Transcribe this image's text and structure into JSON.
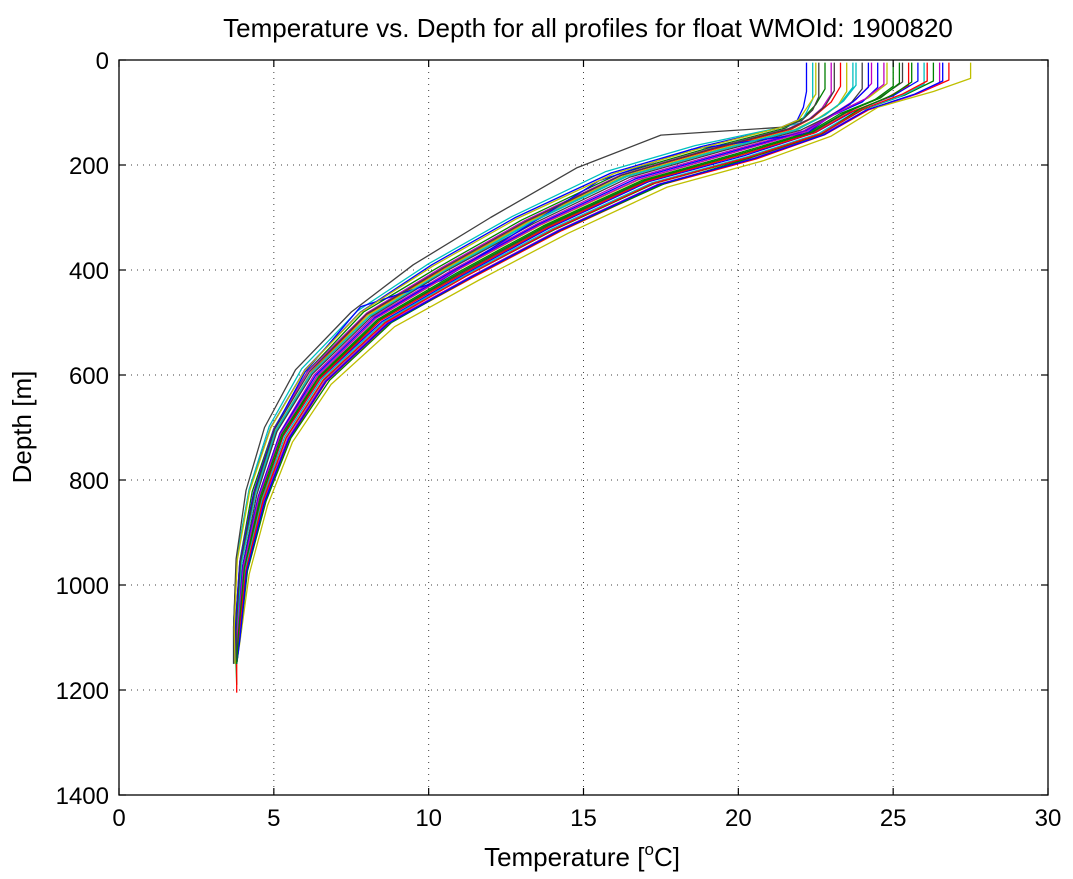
{
  "chart_data": {
    "type": "line",
    "title": "Temperature vs. Depth for all profiles for float WMOId: 1900820",
    "xlabel_main": "Temperature [",
    "xlabel_sup": "o",
    "xlabel_end": "C]",
    "ylabel": "Depth [m]",
    "xlim": [
      0,
      30
    ],
    "ylim": [
      0,
      1400
    ],
    "y_reversed": true,
    "grid": true,
    "x_ticks": [
      0,
      5,
      10,
      15,
      20,
      25,
      30
    ],
    "y_ticks": [
      0,
      200,
      400,
      600,
      800,
      1000,
      1200,
      1400
    ],
    "x_tick_labels": [
      "0",
      "5",
      "10",
      "15",
      "20",
      "25",
      "30"
    ],
    "y_tick_labels": [
      "0",
      "200",
      "400",
      "600",
      "800",
      "1000",
      "1200",
      "1400"
    ],
    "colors": [
      "#0000ff",
      "#008000",
      "#ff0000",
      "#00bfbf",
      "#bf00bf",
      "#bfbf00",
      "#404040"
    ],
    "series": [
      {
        "x": [
          22.2,
          22.2,
          22.1,
          21.9,
          21.3,
          18.8,
          15.9,
          12.8,
          10.1,
          7.8,
          6.0,
          4.9,
          4.2,
          3.8,
          3.7,
          3.7
        ],
        "y": [
          5,
          60,
          90,
          115,
          130,
          165,
          215,
          300,
          390,
          480,
          590,
          700,
          820,
          950,
          1080,
          1150
        ]
      },
      {
        "x": [
          22.8,
          22.8,
          22.5,
          22.1,
          21.5,
          19.0,
          16.1,
          13.0,
          10.3,
          7.9,
          6.1,
          5.0,
          4.3,
          3.9,
          3.75,
          3.8
        ],
        "y": [
          5,
          55,
          85,
          110,
          130,
          168,
          218,
          305,
          395,
          480,
          592,
          702,
          822,
          955,
          1085,
          1190
        ]
      },
      {
        "x": [
          23.3,
          23.3,
          23.0,
          22.4,
          21.7,
          19.2,
          16.2,
          13.2,
          10.5,
          8.0,
          6.2,
          5.1,
          4.4,
          3.95,
          3.8,
          3.8
        ],
        "y": [
          5,
          50,
          80,
          110,
          132,
          170,
          220,
          308,
          398,
          485,
          595,
          705,
          825,
          958,
          1088,
          1205
        ]
      },
      {
        "x": [
          23.8,
          23.8,
          23.4,
          22.8,
          21.9,
          19.4,
          16.4,
          13.3,
          10.6,
          8.1,
          6.2,
          5.1,
          4.4,
          3.95,
          3.8,
          3.8
        ],
        "y": [
          5,
          48,
          78,
          105,
          133,
          172,
          222,
          310,
          400,
          488,
          597,
          707,
          827,
          960,
          1090,
          1150
        ]
      },
      {
        "x": [
          24.3,
          24.3,
          23.8,
          23.0,
          22.1,
          19.6,
          16.6,
          13.5,
          10.7,
          8.2,
          6.3,
          5.2,
          4.5,
          4.0,
          3.8,
          3.8
        ],
        "y": [
          5,
          45,
          75,
          105,
          135,
          175,
          225,
          312,
          402,
          490,
          600,
          710,
          830,
          962,
          1092,
          1150
        ]
      },
      {
        "x": [
          24.8,
          24.8,
          24.2,
          23.2,
          22.2,
          19.8,
          16.8,
          13.6,
          10.8,
          8.3,
          6.4,
          5.2,
          4.5,
          4.0,
          3.8,
          3.8
        ],
        "y": [
          5,
          45,
          72,
          100,
          135,
          177,
          228,
          315,
          405,
          492,
          602,
          712,
          832,
          965,
          1095,
          1150
        ]
      },
      {
        "x": [
          25.3,
          25.3,
          24.6,
          23.5,
          22.4,
          20.0,
          17.0,
          13.8,
          11.0,
          8.4,
          6.5,
          5.3,
          4.6,
          4.05,
          3.85,
          3.8
        ],
        "y": [
          5,
          42,
          70,
          100,
          138,
          180,
          230,
          318,
          408,
          495,
          605,
          715,
          835,
          968,
          1098,
          1150
        ]
      },
      {
        "x": [
          25.8,
          25.8,
          25.0,
          23.7,
          22.5,
          20.2,
          17.1,
          13.9,
          11.1,
          8.5,
          6.5,
          5.3,
          4.6,
          4.05,
          3.85,
          3.8
        ],
        "y": [
          5,
          40,
          68,
          98,
          138,
          182,
          232,
          320,
          410,
          498,
          607,
          717,
          837,
          970,
          1100,
          1150
        ]
      },
      {
        "x": [
          26.3,
          26.3,
          25.4,
          24.0,
          22.7,
          20.4,
          17.3,
          14.1,
          11.2,
          8.6,
          6.6,
          5.4,
          4.65,
          4.1,
          3.85,
          3.8
        ],
        "y": [
          5,
          40,
          66,
          95,
          140,
          185,
          235,
          322,
          412,
          500,
          610,
          720,
          840,
          972,
          1102,
          1150
        ]
      },
      {
        "x": [
          26.8,
          26.8,
          25.8,
          24.2,
          22.8,
          20.6,
          17.5,
          14.3,
          11.4,
          8.7,
          6.7,
          5.5,
          4.7,
          4.1,
          3.9,
          3.8
        ],
        "y": [
          5,
          38,
          64,
          95,
          142,
          188,
          238,
          325,
          415,
          502,
          612,
          722,
          842,
          975,
          1105,
          1150
        ]
      },
      {
        "x": [
          22.4,
          22.4,
          22.2,
          22.0,
          21.4,
          18.6,
          15.7,
          12.7,
          10.0,
          7.7,
          5.9,
          4.85,
          4.2,
          3.8,
          3.7,
          3.7
        ],
        "y": [
          5,
          75,
          100,
          120,
          128,
          163,
          213,
          298,
          388,
          478,
          588,
          698,
          818,
          948,
          1078,
          1150
        ]
      },
      {
        "x": [
          23.0,
          23.0,
          22.7,
          22.3,
          21.6,
          19.1,
          16.2,
          13.1,
          10.4,
          8.0,
          6.1,
          5.0,
          4.35,
          3.9,
          3.75,
          3.8
        ],
        "y": [
          5,
          65,
          92,
          112,
          131,
          169,
          219,
          306,
          396,
          482,
          593,
          703,
          823,
          956,
          1086,
          1150
        ]
      },
      {
        "x": [
          23.5,
          23.5,
          23.2,
          22.6,
          21.8,
          19.3,
          16.3,
          13.2,
          10.5,
          8.05,
          6.2,
          5.05,
          4.4,
          3.95,
          3.8,
          3.8
        ],
        "y": [
          5,
          60,
          88,
          110,
          133,
          171,
          221,
          309,
          399,
          486,
          596,
          706,
          826,
          959,
          1089,
          1150
        ]
      },
      {
        "x": [
          24.0,
          24.0,
          23.6,
          22.9,
          22.0,
          19.5,
          16.5,
          13.4,
          10.6,
          8.15,
          6.25,
          5.1,
          4.45,
          4.0,
          3.8,
          3.8
        ],
        "y": [
          5,
          55,
          85,
          108,
          134,
          173,
          223,
          311,
          401,
          489,
          598,
          708,
          828,
          961,
          1091,
          1150
        ]
      },
      {
        "x": [
          24.5,
          24.5,
          24.0,
          23.1,
          22.15,
          19.7,
          16.7,
          13.55,
          10.75,
          8.25,
          6.35,
          5.2,
          4.5,
          4.0,
          3.8,
          3.8
        ],
        "y": [
          5,
          52,
          80,
          104,
          136,
          176,
          226,
          313,
          403,
          491,
          601,
          711,
          831,
          963,
          1093,
          1150
        ]
      },
      {
        "x": [
          25.0,
          25.0,
          24.4,
          23.3,
          22.3,
          19.9,
          16.9,
          13.7,
          10.9,
          8.35,
          6.45,
          5.25,
          4.55,
          4.05,
          3.85,
          3.8
        ],
        "y": [
          5,
          50,
          76,
          102,
          137,
          179,
          229,
          316,
          406,
          494,
          603,
          713,
          833,
          966,
          1096,
          1150
        ]
      },
      {
        "x": [
          25.5,
          25.5,
          24.8,
          23.6,
          22.45,
          20.1,
          17.05,
          13.85,
          11.05,
          8.45,
          6.5,
          5.3,
          4.6,
          4.05,
          3.85,
          3.8
        ],
        "y": [
          5,
          48,
          72,
          100,
          139,
          181,
          231,
          319,
          409,
          496,
          606,
          716,
          836,
          969,
          1099,
          1150
        ]
      },
      {
        "x": [
          26.0,
          26.0,
          25.2,
          23.8,
          22.6,
          20.3,
          17.2,
          14.0,
          11.15,
          8.55,
          6.55,
          5.35,
          4.62,
          4.08,
          3.85,
          3.8
        ],
        "y": [
          5,
          46,
          70,
          98,
          140,
          184,
          234,
          321,
          411,
          499,
          608,
          718,
          838,
          971,
          1101,
          1150
        ]
      },
      {
        "x": [
          26.5,
          26.5,
          25.6,
          24.1,
          22.75,
          20.5,
          17.4,
          14.2,
          11.3,
          8.65,
          6.65,
          5.45,
          4.68,
          4.1,
          3.88,
          3.8
        ],
        "y": [
          5,
          44,
          68,
          96,
          141,
          187,
          237,
          324,
          414,
          501,
          611,
          721,
          841,
          974,
          1104,
          1150
        ]
      },
      {
        "x": [
          27.5,
          27.5,
          26.3,
          24.5,
          23.0,
          20.8,
          17.7,
          14.5,
          11.6,
          8.9,
          6.85,
          5.6,
          4.8,
          4.2,
          3.9,
          3.8
        ],
        "y": [
          5,
          35,
          60,
          90,
          145,
          192,
          242,
          330,
          420,
          508,
          618,
          728,
          848,
          980,
          1110,
          1150
        ]
      },
      {
        "x": [
          22.6,
          22.6,
          22.4,
          22.05,
          21.45,
          17.5,
          14.8,
          12.0,
          9.5,
          7.5,
          5.7,
          4.7,
          4.1,
          3.78,
          3.7,
          3.7
        ],
        "y": [
          5,
          70,
          95,
          115,
          128,
          143,
          205,
          300,
          390,
          480,
          590,
          700,
          820,
          950,
          1080,
          1150
        ]
      },
      {
        "x": [
          24.2,
          24.2,
          23.7,
          23.0,
          22.2,
          18.5,
          15.5,
          12.8,
          10.4,
          7.8,
          6.0,
          5.0,
          4.35,
          3.9,
          3.75,
          3.8
        ],
        "y": [
          5,
          52,
          80,
          106,
          140,
          170,
          230,
          330,
          420,
          470,
          595,
          705,
          825,
          958,
          1088,
          1150
        ]
      },
      {
        "x": [
          25.6,
          25.6,
          25.0,
          23.9,
          22.7,
          20.4,
          17.6,
          14.3,
          11.4,
          8.8,
          6.8,
          5.55,
          4.75,
          4.15,
          3.9,
          3.8
        ],
        "y": [
          5,
          42,
          66,
          94,
          141,
          186,
          236,
          323,
          413,
          500,
          610,
          720,
          840,
          973,
          1103,
          1150
        ]
      },
      {
        "x": [
          26.1,
          26.1,
          25.3,
          24.0,
          22.65,
          20.35,
          17.25,
          14.05,
          11.2,
          8.6,
          6.6,
          5.4,
          4.65,
          4.1,
          3.85,
          3.8
        ],
        "y": [
          5,
          40,
          65,
          94,
          141,
          185,
          235,
          322,
          412,
          500,
          609,
          719,
          839,
          972,
          1102,
          1150
        ]
      },
      {
        "x": [
          23.7,
          23.7,
          23.3,
          22.7,
          21.85,
          19.35,
          16.35,
          13.25,
          10.55,
          8.1,
          6.2,
          5.05,
          4.4,
          3.95,
          3.8,
          3.8
        ],
        "y": [
          5,
          52,
          82,
          108,
          133,
          172,
          222,
          310,
          400,
          487,
          597,
          707,
          827,
          960,
          1090,
          1150
        ]
      },
      {
        "x": [
          24.7,
          24.7,
          24.1,
          23.15,
          22.2,
          19.75,
          16.75,
          13.6,
          10.8,
          8.3,
          6.4,
          5.22,
          4.52,
          4.02,
          3.82,
          3.8
        ],
        "y": [
          5,
          46,
          74,
          102,
          136,
          178,
          228,
          314,
          404,
          492,
          602,
          712,
          832,
          964,
          1094,
          1150
        ]
      },
      {
        "x": [
          22.5,
          22.5,
          22.2,
          21.95,
          21.35,
          18.9,
          16.0,
          12.85,
          10.15,
          7.8,
          6.0,
          4.9,
          4.22,
          3.82,
          3.72,
          3.75
        ],
        "y": [
          5,
          65,
          92,
          114,
          129,
          166,
          216,
          302,
          392,
          481,
          591,
          701,
          821,
          952,
          1082,
          1150
        ]
      },
      {
        "x": [
          23.1,
          23.1,
          22.8,
          22.35,
          21.65,
          19.15,
          16.25,
          13.15,
          10.45,
          8.0,
          6.15,
          5.02,
          4.38,
          3.92,
          3.78,
          3.8
        ],
        "y": [
          5,
          58,
          88,
          111,
          131,
          169,
          219,
          307,
          397,
          484,
          594,
          704,
          824,
          957,
          1087,
          1150
        ]
      },
      {
        "x": [
          26.6,
          26.6,
          25.7,
          24.15,
          22.78,
          20.55,
          17.45,
          14.25,
          11.35,
          8.68,
          6.68,
          5.48,
          4.7,
          4.12,
          3.9,
          3.8
        ],
        "y": [
          5,
          40,
          65,
          95,
          142,
          187,
          237,
          324,
          414,
          502,
          612,
          722,
          842,
          975,
          1105,
          1150
        ]
      },
      {
        "x": [
          25.2,
          25.2,
          24.6,
          23.45,
          22.35,
          20.0,
          16.95,
          13.75,
          10.95,
          8.4,
          6.45,
          5.28,
          4.58,
          4.05,
          3.85,
          3.8
        ],
        "y": [
          5,
          44,
          72,
          100,
          138,
          180,
          230,
          317,
          407,
          495,
          605,
          715,
          835,
          967,
          1097,
          1150
        ]
      }
    ]
  }
}
